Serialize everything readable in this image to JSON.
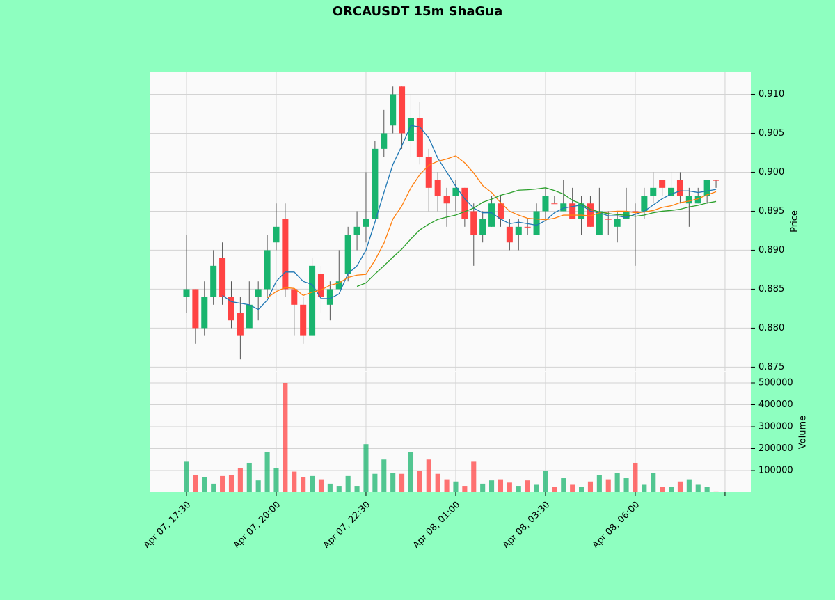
{
  "chart_data": {
    "type": "candlestick",
    "title": "ORCAUSDT 15m ShaGua",
    "grid": true,
    "xlim": [
      -4.03,
      62.95
    ],
    "xticks": [
      {
        "value": 0,
        "label": "Apr 07, 17:30"
      },
      {
        "value": 10,
        "label": "Apr 07, 20:00"
      },
      {
        "value": 20,
        "label": "Apr 07, 22:30"
      },
      {
        "value": 30,
        "label": "Apr 08, 01:00"
      },
      {
        "value": 40,
        "label": "Apr 08, 03:30"
      },
      {
        "value": 50,
        "label": "Apr 08, 06:00"
      },
      {
        "value": 60,
        "label": null
      }
    ],
    "up_color": "#19b46e",
    "down_color": "#ff4343",
    "ylabel": "Price",
    "ylim": [
      0.8745,
      0.9129
    ],
    "yticks": [
      {
        "value": 0.875,
        "label": "0.875"
      },
      {
        "value": 0.88,
        "label": "0.880"
      },
      {
        "value": 0.885,
        "label": "0.885"
      },
      {
        "value": 0.89,
        "label": "0.890"
      },
      {
        "value": 0.895,
        "label": "0.895"
      },
      {
        "value": 0.9,
        "label": "0.900"
      },
      {
        "value": 0.905,
        "label": "0.905"
      },
      {
        "value": 0.91,
        "label": "0.910"
      }
    ],
    "open": [
      0.884,
      0.885,
      0.88,
      0.884,
      0.889,
      0.884,
      0.882,
      0.88,
      0.884,
      0.885,
      0.891,
      0.894,
      0.885,
      0.883,
      0.879,
      0.887,
      0.883,
      0.885,
      0.887,
      0.892,
      0.893,
      0.894,
      0.903,
      0.906,
      0.911,
      0.904,
      0.907,
      0.902,
      0.899,
      0.897,
      0.897,
      0.898,
      0.895,
      0.892,
      0.893,
      0.896,
      0.893,
      0.892,
      0.893,
      0.892,
      0.895,
      0.896,
      0.895,
      0.896,
      0.894,
      0.896,
      0.892,
      0.894,
      0.893,
      0.894,
      0.895,
      0.895,
      0.897,
      0.899,
      0.897,
      0.899,
      0.896,
      0.896,
      0.897,
      0.899
    ],
    "high": [
      0.892,
      0.885,
      0.886,
      0.89,
      0.891,
      0.886,
      0.884,
      0.886,
      0.886,
      0.892,
      0.896,
      0.896,
      0.885,
      0.884,
      0.889,
      0.888,
      0.886,
      0.89,
      0.893,
      0.895,
      0.9,
      0.904,
      0.908,
      0.911,
      0.911,
      0.91,
      0.909,
      0.903,
      0.9,
      0.898,
      0.899,
      0.898,
      0.896,
      0.895,
      0.897,
      0.897,
      0.894,
      0.894,
      0.894,
      0.896,
      0.898,
      0.897,
      0.899,
      0.898,
      0.897,
      0.897,
      0.898,
      0.895,
      0.895,
      0.898,
      0.896,
      0.898,
      0.9,
      0.899,
      0.9,
      0.9,
      0.898,
      0.898,
      0.899,
      0.899
    ],
    "low": [
      0.882,
      0.878,
      0.879,
      0.883,
      0.883,
      0.88,
      0.876,
      0.88,
      0.881,
      0.884,
      0.89,
      0.884,
      0.879,
      0.878,
      0.879,
      0.882,
      0.881,
      0.885,
      0.886,
      0.89,
      0.891,
      0.894,
      0.902,
      0.905,
      0.903,
      0.902,
      0.901,
      0.895,
      0.895,
      0.893,
      0.895,
      0.893,
      0.888,
      0.891,
      0.893,
      0.893,
      0.89,
      0.89,
      0.892,
      0.892,
      0.894,
      0.896,
      0.895,
      0.894,
      0.892,
      0.893,
      0.892,
      0.892,
      0.891,
      0.894,
      0.888,
      0.894,
      0.896,
      0.897,
      0.897,
      0.896,
      0.893,
      0.896,
      0.896,
      0.898
    ],
    "close": [
      0.885,
      0.88,
      0.884,
      0.888,
      0.884,
      0.881,
      0.879,
      0.883,
      0.885,
      0.89,
      0.893,
      0.885,
      0.883,
      0.879,
      0.888,
      0.884,
      0.885,
      0.886,
      0.892,
      0.893,
      0.894,
      0.903,
      0.905,
      0.91,
      0.905,
      0.907,
      0.902,
      0.898,
      0.897,
      0.896,
      0.898,
      0.894,
      0.892,
      0.894,
      0.896,
      0.894,
      0.891,
      0.893,
      0.893,
      0.895,
      0.897,
      0.896,
      0.896,
      0.894,
      0.896,
      0.893,
      0.895,
      0.894,
      0.894,
      0.895,
      0.895,
      0.897,
      0.898,
      0.898,
      0.898,
      0.897,
      0.897,
      0.897,
      0.899,
      0.899
    ],
    "ma": [
      {
        "color": "#1f77b4",
        "values": [
          null,
          null,
          null,
          null,
          0.8842,
          0.8834,
          0.8832,
          0.883,
          0.8824,
          0.8836,
          0.886,
          0.8872,
          0.8872,
          0.886,
          0.8856,
          0.8838,
          0.8838,
          0.8844,
          0.887,
          0.888,
          0.89,
          0.8936,
          0.8974,
          0.901,
          0.9034,
          0.906,
          0.9058,
          0.9044,
          0.9018,
          0.9,
          0.8982,
          0.8966,
          0.8954,
          0.8948,
          0.8948,
          0.894,
          0.8934,
          0.8936,
          0.8934,
          0.8932,
          0.8938,
          0.8948,
          0.8954,
          0.8956,
          0.8958,
          0.895,
          0.8948,
          0.8944,
          0.8944,
          0.8942,
          0.8946,
          0.895,
          0.8958,
          0.8966,
          0.8972,
          0.8976,
          0.8976,
          0.8974,
          0.8976,
          0.8978
        ]
      },
      {
        "color": "#ff7f0e",
        "values": [
          null,
          null,
          null,
          null,
          null,
          null,
          null,
          null,
          null,
          0.8839,
          0.8847,
          0.8852,
          0.8851,
          0.8842,
          0.8846,
          0.8849,
          0.8855,
          0.8858,
          0.8865,
          0.8868,
          0.8869,
          0.8887,
          0.8909,
          0.894,
          0.8957,
          0.898,
          0.8997,
          0.9009,
          0.9014,
          0.9017,
          0.9021,
          0.9012,
          0.8999,
          0.8983,
          0.8974,
          0.8961,
          0.895,
          0.8945,
          0.8941,
          0.894,
          0.8939,
          0.8941,
          0.8945,
          0.8945,
          0.8945,
          0.8944,
          0.8948,
          0.8949,
          0.895,
          0.895,
          0.8948,
          0.8949,
          0.8951,
          0.8955,
          0.8957,
          0.8961,
          0.8963,
          0.8966,
          0.8971,
          0.8975
        ]
      },
      {
        "color": "#2ca02c",
        "values": [
          null,
          null,
          null,
          null,
          null,
          null,
          null,
          null,
          null,
          null,
          null,
          null,
          null,
          null,
          null,
          null,
          null,
          null,
          null,
          0.88535,
          0.8858,
          0.88695,
          0.888,
          0.8891,
          0.89015,
          0.89145,
          0.8926,
          0.89335,
          0.89395,
          0.89425,
          0.8945,
          0.89495,
          0.8954,
          0.89615,
          0.89655,
          0.89705,
          0.89735,
          0.8977,
          0.89775,
          0.89785,
          0.898,
          0.89765,
          0.8972,
          0.8964,
          0.89595,
          0.89525,
          0.8949,
          0.8947,
          0.89455,
          0.8945,
          0.89435,
          0.8945,
          0.8948,
          0.895,
          0.8951,
          0.89525,
          0.89555,
          0.89575,
          0.89605,
          0.89625
        ]
      }
    ],
    "volume": {
      "ylabel": "Volume",
      "ylim": [
        1600,
        547600
      ],
      "yticks": [
        100000,
        200000,
        300000,
        400000,
        500000
      ],
      "values": [
        140000,
        80000,
        70000,
        40000,
        75000,
        80000,
        110000,
        135000,
        55000,
        185000,
        110000,
        500000,
        95000,
        70000,
        75000,
        60000,
        40000,
        30000,
        75000,
        30000,
        220000,
        85000,
        150000,
        90000,
        85000,
        185000,
        100000,
        150000,
        85000,
        60000,
        50000,
        30000,
        140000,
        40000,
        55000,
        60000,
        45000,
        30000,
        55000,
        35000,
        100000,
        25000,
        65000,
        35000,
        25000,
        50000,
        80000,
        60000,
        90000,
        65000,
        135000,
        35000,
        90000,
        25000,
        25000,
        50000,
        60000,
        35000,
        25000,
        2000
      ]
    }
  }
}
